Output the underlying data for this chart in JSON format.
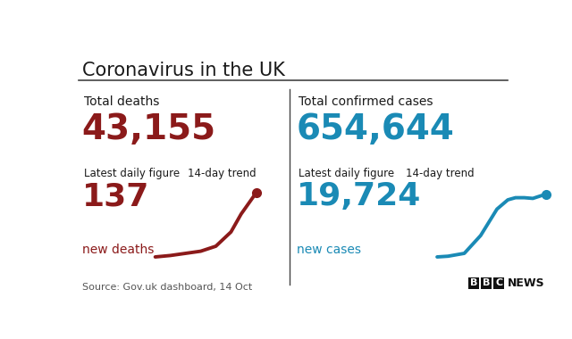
{
  "title": "Coronavirus in the UK",
  "bg_color": "#ffffff",
  "title_color": "#1a1a1a",
  "divider_color": "#444444",
  "left_panel": {
    "label_total": "Total deaths",
    "value_total": "43,155",
    "value_total_color": "#8b1a1a",
    "label_daily": "Latest daily figure",
    "label_trend": "14-day trend",
    "value_daily": "137",
    "value_daily_color": "#8b1a1a",
    "sublabel_daily": "new deaths",
    "sublabel_daily_color": "#8b1a1a",
    "trend_color": "#8b1a1a"
  },
  "right_panel": {
    "label_total": "Total confirmed cases",
    "value_total": "654,644",
    "value_total_color": "#1a8ab5",
    "label_daily": "Latest daily figure",
    "label_trend": "14-day trend",
    "value_daily": "19,724",
    "value_daily_color": "#1a8ab5",
    "sublabel_daily": "new cases",
    "sublabel_daily_color": "#1a8ab5",
    "trend_color": "#1a8ab5"
  },
  "source_text": "Source: Gov.uk dashboard, 14 Oct",
  "source_color": "#555555"
}
